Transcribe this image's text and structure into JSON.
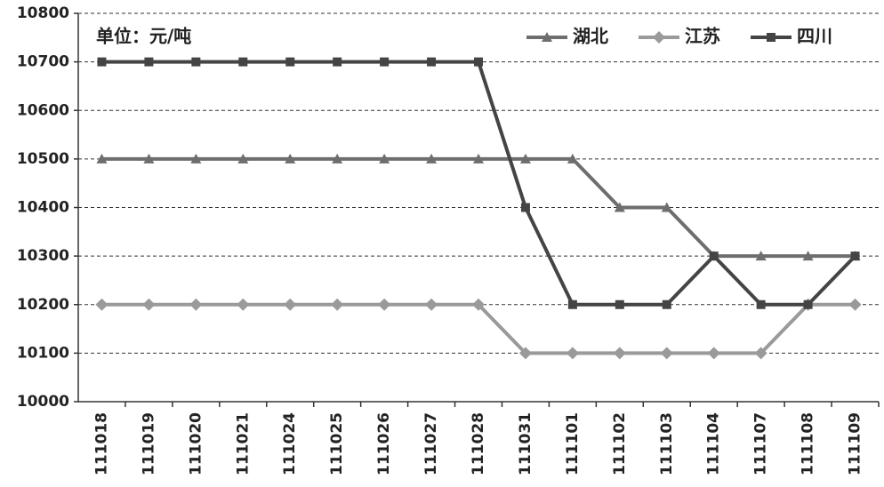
{
  "chart_data": {
    "type": "line",
    "annotation": "单位：元/吨",
    "categories": [
      "111018",
      "111019",
      "111020",
      "111021",
      "111024",
      "111025",
      "111026",
      "111027",
      "111028",
      "111031",
      "111101",
      "111102",
      "111103",
      "111104",
      "111107",
      "111108",
      "111109"
    ],
    "series": [
      {
        "name": "湖北",
        "color": "#6e6e6e",
        "marker": "triangle",
        "values": [
          10500,
          10500,
          10500,
          10500,
          10500,
          10500,
          10500,
          10500,
          10500,
          10500,
          10500,
          10400,
          10400,
          10300,
          10300,
          10300,
          10300
        ]
      },
      {
        "name": "江苏",
        "color": "#9a9a9a",
        "marker": "diamond",
        "values": [
          10200,
          10200,
          10200,
          10200,
          10200,
          10200,
          10200,
          10200,
          10200,
          10100,
          10100,
          10100,
          10100,
          10100,
          10100,
          10200,
          10200
        ]
      },
      {
        "name": "四川",
        "color": "#444444",
        "marker": "square",
        "values": [
          10700,
          10700,
          10700,
          10700,
          10700,
          10700,
          10700,
          10700,
          10700,
          10400,
          10200,
          10200,
          10200,
          10300,
          10200,
          10200,
          10300
        ]
      }
    ],
    "ylim": [
      10000,
      10800
    ],
    "yticks": [
      10000,
      10100,
      10200,
      10300,
      10400,
      10500,
      10600,
      10700,
      10800
    ],
    "grid": true,
    "legend": "top-right"
  }
}
